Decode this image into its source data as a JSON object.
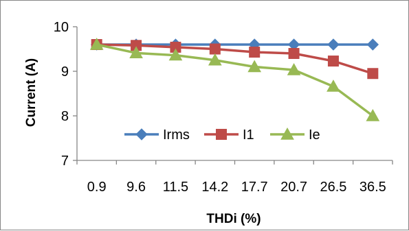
{
  "chart_data": {
    "type": "line",
    "categories": [
      "0.9",
      "9.6",
      "11.5",
      "14.2",
      "17.7",
      "20.7",
      "26.5",
      "36.5"
    ],
    "xlabel": "THDi (%)",
    "ylabel": "Current (A)",
    "ylim": [
      7,
      10
    ],
    "yticks": [
      "7",
      "8",
      "9",
      "10"
    ],
    "grid": false,
    "legend_position": "inside-bottom-center",
    "series": [
      {
        "name": "Irms",
        "color": "#4a7ebb",
        "marker": "diamond",
        "values": [
          9.6,
          9.6,
          9.6,
          9.6,
          9.6,
          9.6,
          9.6,
          9.6
        ]
      },
      {
        "name": "I1",
        "color": "#be4b48",
        "marker": "square",
        "values": [
          9.6,
          9.58,
          9.54,
          9.5,
          9.43,
          9.4,
          9.23,
          8.95
        ]
      },
      {
        "name": "Ie",
        "color": "#98b954",
        "marker": "triangle",
        "values": [
          9.6,
          9.41,
          9.36,
          9.25,
          9.1,
          9.03,
          8.66,
          8.0
        ]
      }
    ]
  }
}
